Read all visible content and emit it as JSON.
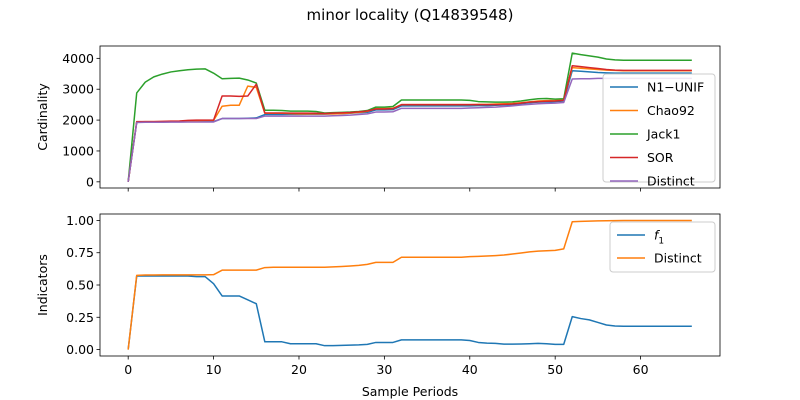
{
  "figure": {
    "title": "minor locality (Q14839548)"
  },
  "chart_data": [
    {
      "type": "line",
      "ylabel": "Cardinality",
      "xlabel": "",
      "xlim": [
        -3.3,
        69.3
      ],
      "ylim": [
        -200,
        4400
      ],
      "xticks": [
        0,
        10,
        20,
        30,
        40,
        50,
        60
      ],
      "yticks": [
        0,
        1000,
        2000,
        3000,
        4000
      ],
      "ytick_labels": [
        "0",
        "1000",
        "2000",
        "3000",
        "4000"
      ],
      "show_xtick_labels": false,
      "grid": false,
      "legend_position": "right",
      "series": [
        {
          "name": "N1−UNIF",
          "color": "#1f77b4",
          "x": [
            0,
            1,
            2,
            3,
            4,
            5,
            6,
            7,
            8,
            9,
            10,
            11,
            12,
            13,
            14,
            15,
            16,
            17,
            18,
            19,
            20,
            21,
            22,
            23,
            24,
            25,
            26,
            27,
            28,
            29,
            30,
            31,
            32,
            33,
            34,
            35,
            36,
            37,
            38,
            39,
            40,
            41,
            42,
            43,
            44,
            45,
            46,
            47,
            48,
            49,
            50,
            51,
            52,
            53,
            54,
            55,
            56,
            57,
            58,
            59,
            60,
            61,
            62,
            63,
            64,
            65,
            66
          ],
          "y": [
            0,
            1930,
            1940,
            1940,
            1940,
            1945,
            1945,
            1950,
            1950,
            1950,
            1950,
            2050,
            2050,
            2050,
            2060,
            2070,
            2180,
            2180,
            2180,
            2185,
            2185,
            2190,
            2190,
            2195,
            2200,
            2210,
            2220,
            2240,
            2250,
            2330,
            2330,
            2340,
            2460,
            2460,
            2460,
            2460,
            2460,
            2460,
            2460,
            2460,
            2460,
            2470,
            2470,
            2480,
            2490,
            2500,
            2530,
            2560,
            2580,
            2590,
            2600,
            2620,
            3600,
            3580,
            3560,
            3540,
            3530,
            3520,
            3520,
            3520,
            3520,
            3520,
            3520,
            3520,
            3520,
            3520,
            3520
          ]
        },
        {
          "name": "Chao92",
          "color": "#ff7f0e",
          "x": [
            0,
            1,
            2,
            3,
            4,
            5,
            6,
            7,
            8,
            9,
            10,
            11,
            12,
            13,
            14,
            15,
            16,
            17,
            18,
            19,
            20,
            21,
            22,
            23,
            24,
            25,
            26,
            27,
            28,
            29,
            30,
            31,
            32,
            33,
            34,
            35,
            36,
            37,
            38,
            39,
            40,
            41,
            42,
            43,
            44,
            45,
            46,
            47,
            48,
            49,
            50,
            51,
            52,
            53,
            54,
            55,
            56,
            57,
            58,
            59,
            60,
            61,
            62,
            63,
            64,
            65,
            66
          ],
          "y": [
            0,
            1940,
            1950,
            1950,
            1950,
            1955,
            1960,
            1970,
            1980,
            1985,
            1990,
            2450,
            2480,
            2480,
            3100,
            3060,
            2220,
            2220,
            2220,
            2210,
            2200,
            2200,
            2200,
            2200,
            2200,
            2210,
            2230,
            2250,
            2280,
            2380,
            2380,
            2380,
            2500,
            2500,
            2500,
            2500,
            2500,
            2500,
            2500,
            2500,
            2500,
            2510,
            2510,
            2520,
            2530,
            2540,
            2560,
            2590,
            2620,
            2630,
            2640,
            2660,
            3700,
            3680,
            3660,
            3640,
            3620,
            3610,
            3600,
            3600,
            3600,
            3600,
            3600,
            3600,
            3600,
            3600,
            3600
          ]
        },
        {
          "name": "Jack1",
          "color": "#2ca02c",
          "x": [
            0,
            1,
            2,
            3,
            4,
            5,
            6,
            7,
            8,
            9,
            10,
            11,
            12,
            13,
            14,
            15,
            16,
            17,
            18,
            19,
            20,
            21,
            22,
            23,
            24,
            25,
            26,
            27,
            28,
            29,
            30,
            31,
            32,
            33,
            34,
            35,
            36,
            37,
            38,
            39,
            40,
            41,
            42,
            43,
            44,
            45,
            46,
            47,
            48,
            49,
            50,
            51,
            52,
            53,
            54,
            55,
            56,
            57,
            58,
            59,
            60,
            61,
            62,
            63,
            64,
            65,
            66
          ],
          "y": [
            0,
            2880,
            3230,
            3400,
            3490,
            3560,
            3600,
            3630,
            3650,
            3660,
            3520,
            3340,
            3350,
            3360,
            3300,
            3200,
            2320,
            2320,
            2310,
            2290,
            2290,
            2290,
            2280,
            2230,
            2240,
            2250,
            2260,
            2280,
            2310,
            2420,
            2420,
            2440,
            2650,
            2650,
            2650,
            2650,
            2650,
            2650,
            2650,
            2650,
            2640,
            2600,
            2590,
            2580,
            2580,
            2590,
            2620,
            2660,
            2690,
            2700,
            2680,
            2690,
            4170,
            4120,
            4080,
            4040,
            3980,
            3950,
            3940,
            3940,
            3940,
            3940,
            3940,
            3940,
            3940,
            3940,
            3940
          ]
        },
        {
          "name": "SOR",
          "color": "#d62728",
          "x": [
            0,
            1,
            2,
            3,
            4,
            5,
            6,
            7,
            8,
            9,
            10,
            11,
            12,
            13,
            14,
            15,
            16,
            17,
            18,
            19,
            20,
            21,
            22,
            23,
            24,
            25,
            26,
            27,
            28,
            29,
            30,
            31,
            32,
            33,
            34,
            35,
            36,
            37,
            38,
            39,
            40,
            41,
            42,
            43,
            44,
            45,
            46,
            47,
            48,
            49,
            50,
            51,
            52,
            53,
            54,
            55,
            56,
            57,
            58,
            59,
            60,
            61,
            62,
            63,
            64,
            65,
            66
          ],
          "y": [
            0,
            1950,
            1950,
            1950,
            1960,
            1965,
            1970,
            1990,
            2000,
            2000,
            2000,
            2780,
            2780,
            2770,
            2780,
            3160,
            2230,
            2230,
            2230,
            2225,
            2225,
            2225,
            2220,
            2215,
            2225,
            2235,
            2245,
            2265,
            2295,
            2360,
            2360,
            2370,
            2500,
            2500,
            2500,
            2500,
            2500,
            2500,
            2500,
            2500,
            2500,
            2500,
            2500,
            2500,
            2510,
            2520,
            2550,
            2580,
            2600,
            2610,
            2620,
            2640,
            3760,
            3730,
            3700,
            3670,
            3640,
            3620,
            3610,
            3610,
            3610,
            3610,
            3610,
            3610,
            3610,
            3610,
            3610
          ]
        },
        {
          "name": "Distinct",
          "color": "#9467bd",
          "x": [
            0,
            1,
            2,
            3,
            4,
            5,
            6,
            7,
            8,
            9,
            10,
            11,
            12,
            13,
            14,
            15,
            16,
            17,
            18,
            19,
            20,
            21,
            22,
            23,
            24,
            25,
            26,
            27,
            28,
            29,
            30,
            31,
            32,
            33,
            34,
            35,
            36,
            37,
            38,
            39,
            40,
            41,
            42,
            43,
            44,
            45,
            46,
            47,
            48,
            49,
            50,
            51,
            52,
            53,
            54,
            55,
            56,
            57,
            58,
            59,
            60,
            61,
            62,
            63,
            64,
            65,
            66
          ],
          "y": [
            0,
            1920,
            1930,
            1930,
            1930,
            1935,
            1935,
            1940,
            1940,
            1940,
            1940,
            2050,
            2050,
            2050,
            2050,
            2050,
            2130,
            2130,
            2130,
            2130,
            2130,
            2130,
            2130,
            2130,
            2140,
            2150,
            2160,
            2180,
            2200,
            2260,
            2260,
            2270,
            2380,
            2380,
            2380,
            2380,
            2380,
            2380,
            2380,
            2380,
            2390,
            2400,
            2410,
            2420,
            2440,
            2460,
            2490,
            2510,
            2530,
            2540,
            2550,
            2570,
            3330,
            3340,
            3340,
            3350,
            3350,
            3350,
            3350,
            3350,
            3350,
            3350,
            3350,
            3350,
            3350,
            3350,
            3350
          ]
        }
      ]
    },
    {
      "type": "line",
      "ylabel": "Indicators",
      "xlabel": "Sample Periods",
      "xlim": [
        -3.3,
        69.3
      ],
      "ylim": [
        -0.05,
        1.05
      ],
      "xticks": [
        0,
        10,
        20,
        30,
        40,
        50,
        60
      ],
      "xtick_labels": [
        "0",
        "10",
        "20",
        "30",
        "40",
        "50",
        "60"
      ],
      "yticks": [
        0,
        0.25,
        0.5,
        0.75,
        1.0
      ],
      "ytick_labels": [
        "0.00",
        "0.25",
        "0.50",
        "0.75",
        "1.00"
      ],
      "show_xtick_labels": true,
      "grid": false,
      "legend_position": "top-right",
      "series": [
        {
          "name": "f",
          "name_sub": "1",
          "color": "#1f77b4",
          "x": [
            0,
            1,
            2,
            3,
            4,
            5,
            6,
            7,
            8,
            9,
            10,
            11,
            12,
            13,
            14,
            15,
            16,
            17,
            18,
            19,
            20,
            21,
            22,
            23,
            24,
            25,
            26,
            27,
            28,
            29,
            30,
            31,
            32,
            33,
            34,
            35,
            36,
            37,
            38,
            39,
            40,
            41,
            42,
            43,
            44,
            45,
            46,
            47,
            48,
            49,
            50,
            51,
            52,
            53,
            54,
            55,
            56,
            57,
            58,
            59,
            60,
            61,
            62,
            63,
            64,
            65,
            66
          ],
          "y": [
            0,
            0.57,
            0.57,
            0.57,
            0.57,
            0.57,
            0.57,
            0.57,
            0.565,
            0.565,
            0.51,
            0.415,
            0.415,
            0.415,
            0.385,
            0.355,
            0.06,
            0.06,
            0.06,
            0.045,
            0.045,
            0.045,
            0.045,
            0.03,
            0.03,
            0.032,
            0.034,
            0.036,
            0.04,
            0.055,
            0.055,
            0.055,
            0.075,
            0.075,
            0.075,
            0.075,
            0.075,
            0.075,
            0.075,
            0.075,
            0.07,
            0.055,
            0.05,
            0.048,
            0.042,
            0.042,
            0.043,
            0.045,
            0.048,
            0.045,
            0.04,
            0.04,
            0.255,
            0.24,
            0.23,
            0.21,
            0.19,
            0.182,
            0.18,
            0.18,
            0.18,
            0.18,
            0.18,
            0.18,
            0.18,
            0.18,
            0.18
          ]
        },
        {
          "name": "Distinct",
          "color": "#ff7f0e",
          "x": [
            0,
            1,
            2,
            3,
            4,
            5,
            6,
            7,
            8,
            9,
            10,
            11,
            12,
            13,
            14,
            15,
            16,
            17,
            18,
            19,
            20,
            21,
            22,
            23,
            24,
            25,
            26,
            27,
            28,
            29,
            30,
            31,
            32,
            33,
            34,
            35,
            36,
            37,
            38,
            39,
            40,
            41,
            42,
            43,
            44,
            45,
            46,
            47,
            48,
            49,
            50,
            51,
            52,
            53,
            54,
            55,
            56,
            57,
            58,
            59,
            60,
            61,
            62,
            63,
            64,
            65,
            66
          ],
          "y": [
            0,
            0.575,
            0.577,
            0.577,
            0.578,
            0.578,
            0.578,
            0.578,
            0.578,
            0.578,
            0.58,
            0.615,
            0.615,
            0.615,
            0.615,
            0.615,
            0.635,
            0.637,
            0.637,
            0.637,
            0.637,
            0.637,
            0.637,
            0.637,
            0.64,
            0.643,
            0.647,
            0.652,
            0.66,
            0.675,
            0.675,
            0.675,
            0.715,
            0.715,
            0.715,
            0.715,
            0.715,
            0.715,
            0.715,
            0.715,
            0.72,
            0.722,
            0.725,
            0.728,
            0.732,
            0.74,
            0.748,
            0.757,
            0.762,
            0.765,
            0.768,
            0.78,
            0.99,
            0.993,
            0.995,
            0.997,
            0.998,
            0.999,
            1.0,
            1.0,
            1.0,
            1.0,
            1.0,
            1.0,
            1.0,
            1.0,
            1.0
          ]
        }
      ]
    }
  ]
}
